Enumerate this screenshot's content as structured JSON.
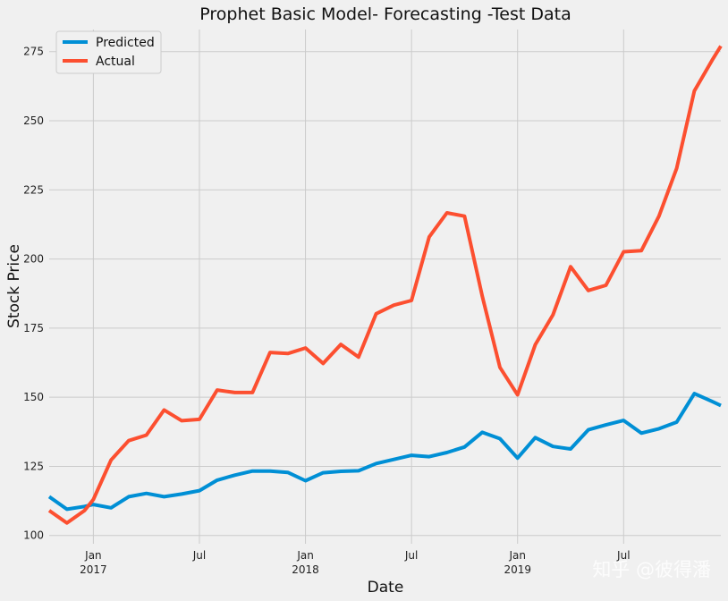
{
  "chart_data": {
    "type": "line",
    "title": "Prophet Basic Model- Forecasting -Test Data",
    "xlabel": "Date",
    "ylabel": "Stock Price",
    "ylim": [
      97,
      283
    ],
    "yticks": [
      100,
      125,
      150,
      175,
      200,
      225,
      250,
      275
    ],
    "x_start_month": 9.5,
    "x_end_month": 47.5,
    "x_tick_positions": [
      12,
      18,
      24,
      30,
      36,
      42
    ],
    "x_tick_labels": [
      "Jan\n2017",
      "Jul",
      "Jan\n2018",
      "Jul",
      "Jan\n2019",
      "Jul"
    ],
    "x": [
      9.5,
      10.5,
      11.5,
      12,
      13,
      14,
      15,
      16,
      17,
      18,
      19,
      20,
      21,
      22,
      23,
      24,
      25,
      26,
      27,
      28,
      29,
      30,
      31,
      32,
      33,
      34,
      35,
      36,
      37,
      38,
      39,
      40,
      41,
      42,
      43,
      44,
      45,
      46,
      47,
      47.5
    ],
    "grid": true,
    "legend_position": "top-left",
    "series": [
      {
        "name": "Predicted",
        "color": "#008fd5",
        "values": [
          114,
          109.5,
          110.5,
          111.2,
          110,
          114,
          115.2,
          114,
          115,
          116.2,
          120,
          121.8,
          123.3,
          123.3,
          122.8,
          119.8,
          122.7,
          123.2,
          123.4,
          126,
          127.5,
          129,
          128.5,
          130,
          132,
          137.3,
          135,
          128,
          135.4,
          132.2,
          131.3,
          138.2,
          140,
          141.6,
          137,
          138.6,
          141,
          151.3,
          148.5,
          147
        ]
      },
      {
        "name": "Actual",
        "color": "#fc4f30",
        "values": [
          109,
          104.5,
          109,
          113,
          127.3,
          134.3,
          136.3,
          145.4,
          141.5,
          142,
          152.6,
          151.7,
          151.7,
          166.2,
          165.8,
          167.8,
          162.2,
          169.1,
          164.5,
          180.2,
          183.3,
          185,
          208,
          216.7,
          215.5,
          186.6,
          160.8,
          150.9,
          169,
          179.8,
          197.2,
          188.6,
          190.5,
          202.6,
          203,
          215.5,
          232.8,
          260.8,
          271.8,
          277
        ]
      }
    ]
  },
  "watermark": "知乎 @彼得潘"
}
